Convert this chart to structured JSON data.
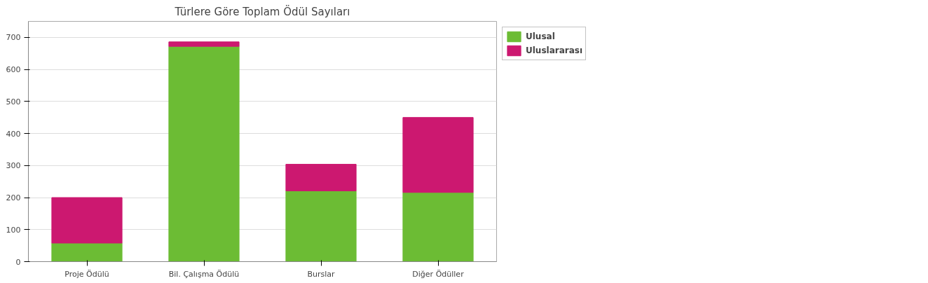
{
  "chart_data": {
    "type": "bar",
    "title": "Türlere Göre Toplam Ödül Sayıları",
    "stacked": true,
    "categories": [
      "Proje Ödülü",
      "Bil. Çalışma Ödülü",
      "Burslar",
      "Diğer Ödüller"
    ],
    "series": [
      {
        "name": "Ulusal",
        "color": "#6cbc34",
        "values": [
          58,
          672,
          221,
          216
        ]
      },
      {
        "name": "Uluslararası",
        "color": "#cc1870",
        "values": [
          142,
          14,
          83,
          234
        ]
      }
    ],
    "ylim": [
      0,
      750
    ],
    "yticks": [
      0,
      100,
      200,
      300,
      400,
      500,
      600,
      700
    ],
    "grid": "y",
    "legend": "top right"
  }
}
